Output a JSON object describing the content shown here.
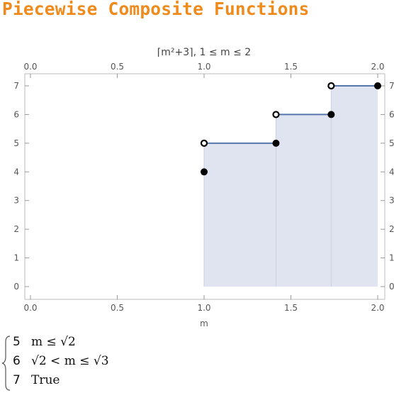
{
  "page": {
    "title": "Piecewise Composite Functions"
  },
  "chart_data": {
    "type": "line",
    "title": "⌈m²+3⌉,  1 ≤ m ≤ 2",
    "xlabel": "m",
    "ylabel": "",
    "xlim": [
      0,
      2
    ],
    "ylim": [
      0,
      7
    ],
    "x_ticks": [
      "0.0",
      "0.5",
      "1.0",
      "1.5",
      "2.0"
    ],
    "y_ticks": [
      "0",
      "1",
      "2",
      "3",
      "4",
      "5",
      "6",
      "7"
    ],
    "fill_to_zero": true,
    "series": [
      {
        "segments": [
          {
            "x_start": 1.0,
            "x_end": 1.4142,
            "value": 5
          },
          {
            "x_start": 1.4142,
            "x_end": 1.7321,
            "value": 6
          },
          {
            "x_start": 1.7321,
            "x_end": 2.0,
            "value": 7
          }
        ]
      }
    ],
    "points_filled": [
      {
        "x": 1.0,
        "y": 4
      },
      {
        "x": 1.4142,
        "y": 5
      },
      {
        "x": 1.7321,
        "y": 6
      },
      {
        "x": 2.0,
        "y": 7
      }
    ],
    "points_open": [
      {
        "x": 1.0,
        "y": 5
      },
      {
        "x": 1.4142,
        "y": 6
      },
      {
        "x": 1.7321,
        "y": 7
      }
    ],
    "colors": {
      "line": "#5577aa",
      "fill": "#dde3ef",
      "frame": "#bbbbbb"
    }
  },
  "piecewise": {
    "rows": [
      {
        "value": "5",
        "condition": "m ≤ √2"
      },
      {
        "value": "6",
        "condition": "√2 < m ≤ √3"
      },
      {
        "value": "7",
        "condition": "True"
      }
    ]
  }
}
